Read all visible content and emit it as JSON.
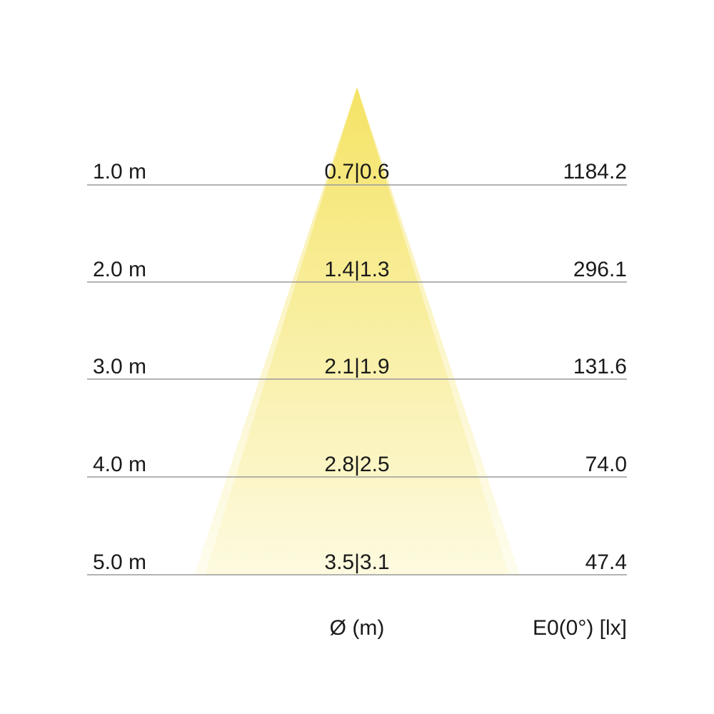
{
  "rows": [
    {
      "distance": "1.0 m",
      "diameter": "0.7|0.6",
      "illuminance": "1184.2"
    },
    {
      "distance": "2.0 m",
      "diameter": "1.4|1.3",
      "illuminance": "296.1"
    },
    {
      "distance": "3.0 m",
      "diameter": "2.1|1.9",
      "illuminance": "131.6"
    },
    {
      "distance": "4.0 m",
      "diameter": "2.8|2.5",
      "illuminance": "74.0"
    },
    {
      "distance": "5.0 m",
      "diameter": "3.5|3.1",
      "illuminance": "47.4"
    }
  ],
  "footer": {
    "diameter_label": "Ø (m)",
    "illuminance_label": "E0(0°) [lx]"
  },
  "colors": {
    "cone_top": "#f4e25e",
    "cone_bottom": "#fdfadf",
    "line": "#9a9a9a"
  }
}
